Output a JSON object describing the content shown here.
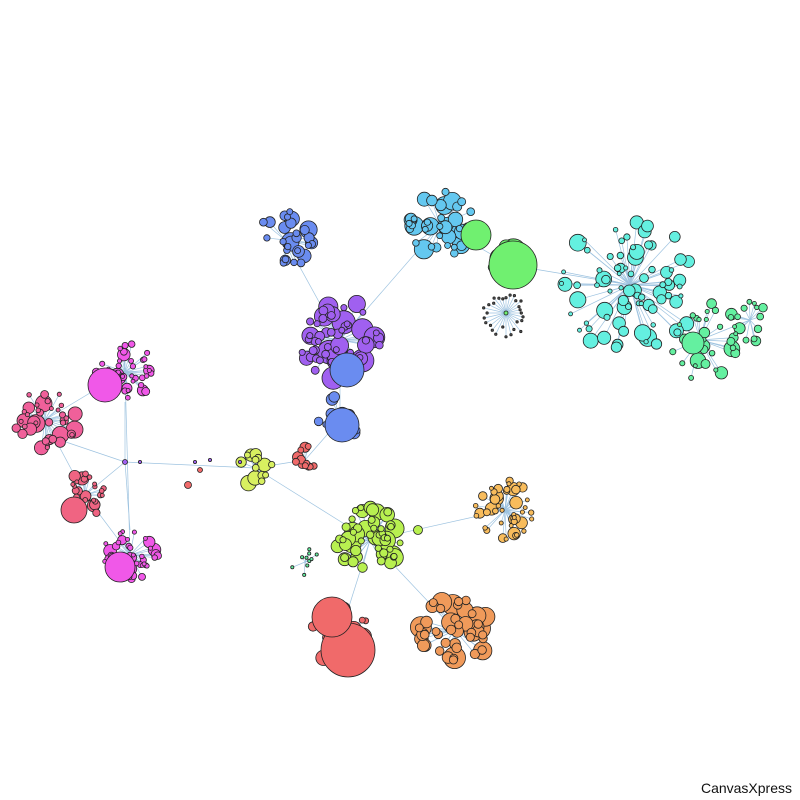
{
  "brand": {
    "watermark": "CanvasXpress"
  },
  "graph": {
    "type": "network",
    "edge_color": "#9ec3e0",
    "node_stroke": "#222222",
    "clusters": [
      {
        "name": "pink",
        "color": "#f0609a"
      },
      {
        "name": "magenta",
        "color": "#f058e8"
      },
      {
        "name": "rose",
        "color": "#f06482"
      },
      {
        "name": "yellow-green",
        "color": "#d8f060"
      },
      {
        "name": "red",
        "color": "#f06a6a"
      },
      {
        "name": "lime",
        "color": "#b8f050"
      },
      {
        "name": "orange",
        "color": "#f09a5a"
      },
      {
        "name": "amber",
        "color": "#f8bc5c"
      },
      {
        "name": "blue",
        "color": "#6a8cf0"
      },
      {
        "name": "violet",
        "color": "#a060f0"
      },
      {
        "name": "sky",
        "color": "#64c8f0"
      },
      {
        "name": "green",
        "color": "#70f070"
      },
      {
        "name": "aqua",
        "color": "#64f0e0"
      },
      {
        "name": "spring-green",
        "color": "#64f0a0"
      }
    ]
  }
}
